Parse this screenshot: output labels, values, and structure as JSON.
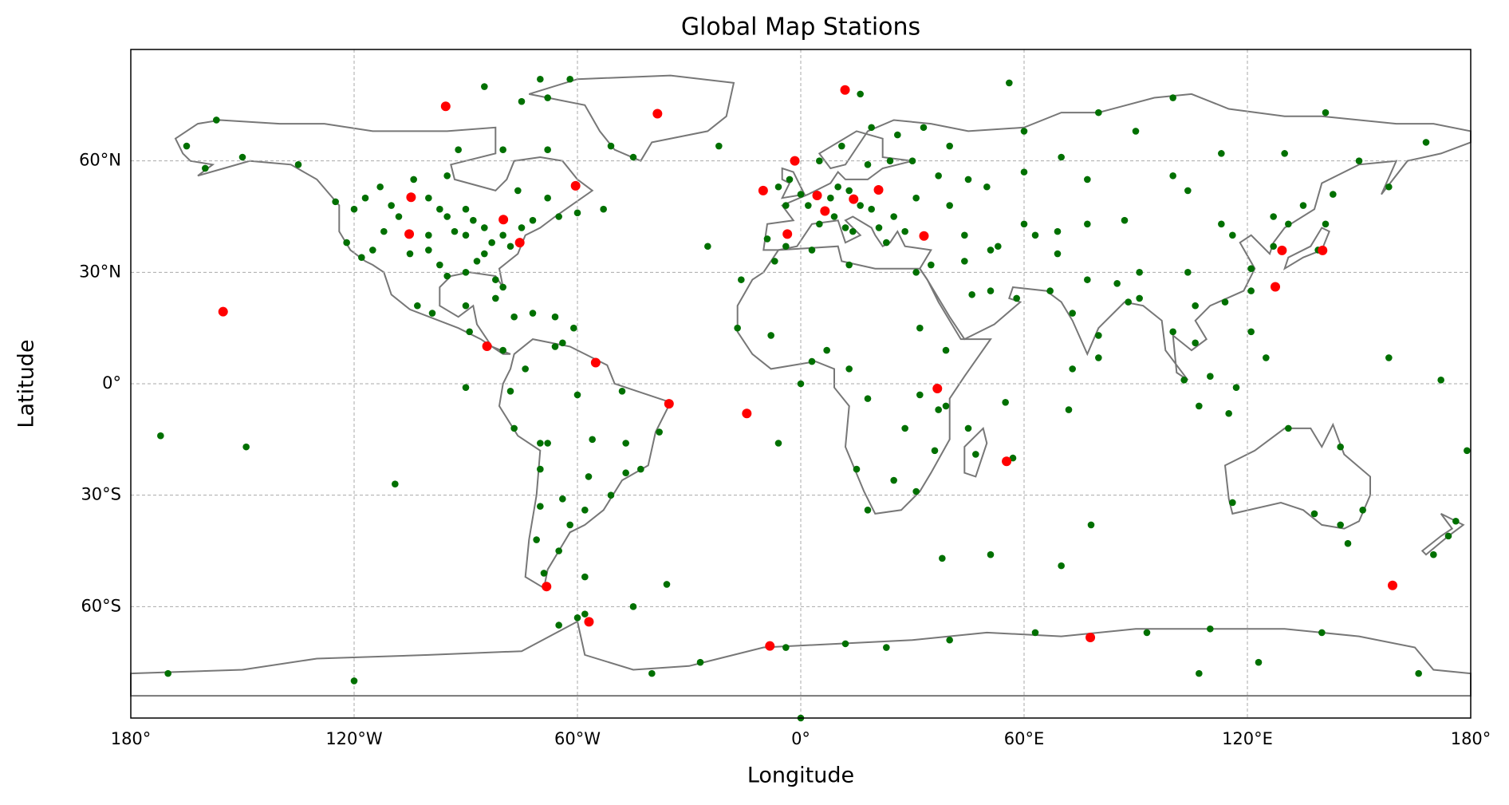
{
  "chart_data": {
    "type": "scatter",
    "title": "Global Map Stations",
    "x_label": "Longitude",
    "y_label": "Latitude",
    "xlim": [
      -180,
      180
    ],
    "ylim": [
      -90,
      90
    ],
    "xticks": [
      {
        "value": -180,
        "label": "180°"
      },
      {
        "value": -120,
        "label": "120°W"
      },
      {
        "value": -60,
        "label": "60°W"
      },
      {
        "value": 0,
        "label": "0°"
      },
      {
        "value": 60,
        "label": "60°E"
      },
      {
        "value": 120,
        "label": "120°E"
      },
      {
        "value": 180,
        "label": "180°"
      }
    ],
    "yticks": [
      {
        "value": -60,
        "label": "60°S"
      },
      {
        "value": -30,
        "label": "30°S"
      },
      {
        "value": 0,
        "label": "0°"
      },
      {
        "value": 30,
        "label": "30°N"
      },
      {
        "value": 60,
        "label": "60°N"
      }
    ],
    "grid": true,
    "series": [
      {
        "color": "#007000",
        "x": [
          -100,
          -110,
          -95,
          -90,
          -85,
          -80,
          -75,
          -120,
          -122,
          -118,
          -105,
          -97,
          -90,
          -82,
          -80,
          -88,
          -93,
          -100,
          -112,
          -115,
          -108,
          -97,
          -85,
          -78,
          -72,
          -65,
          -60,
          -53,
          -68,
          -76,
          -113,
          -125,
          -135,
          -150,
          -165,
          -157,
          -100,
          -95,
          -87,
          -83,
          -90,
          -117,
          -104,
          -95,
          -80,
          -68,
          -92,
          -70,
          -62,
          -85,
          -75,
          -45,
          -51,
          -68,
          -22,
          -99,
          -90,
          -103,
          -89,
          -80,
          -77,
          -66,
          -72,
          -82,
          -61,
          -64,
          -74,
          -66,
          -78,
          -77,
          -70,
          -68,
          -60,
          -48,
          -38,
          -47,
          -43,
          -47,
          -51,
          -58,
          -64,
          -70,
          -71,
          -65,
          -69,
          -58,
          -62,
          -56,
          -57,
          -70,
          -36,
          0,
          2,
          -3,
          -6,
          -9,
          -4,
          5,
          9,
          12,
          14,
          10,
          13,
          18,
          24,
          30,
          37,
          25,
          21,
          23,
          28,
          19,
          16,
          8,
          5,
          11,
          19,
          26,
          33,
          44,
          50,
          60,
          45,
          40,
          31,
          16,
          -4,
          -16,
          -25,
          -17,
          -8,
          3,
          7,
          13,
          18,
          28,
          36,
          31,
          18,
          25,
          15,
          32,
          37,
          39,
          45,
          47,
          57,
          55,
          39,
          32,
          31,
          13,
          -7,
          3,
          -6,
          0,
          35,
          46,
          51,
          58,
          69,
          67,
          73,
          77,
          80,
          88,
          85,
          91,
          80,
          73,
          72,
          100,
          106,
          106,
          103,
          107,
          115,
          117,
          110,
          121,
          125,
          121,
          114,
          116,
          121,
          104,
          91,
          87,
          77,
          69,
          63,
          53,
          51,
          44,
          100,
          104,
          113,
          127,
          135,
          131,
          127,
          139,
          141,
          143,
          158,
          168,
          150,
          130,
          113,
          90,
          80,
          60,
          70,
          40,
          56,
          141,
          100,
          60,
          77,
          116,
          131,
          145,
          151,
          145,
          147,
          138,
          174,
          176,
          170,
          179,
          158,
          172,
          -172,
          -149,
          -109,
          -90,
          -160,
          -60,
          -58,
          -65,
          -45,
          -40,
          -27,
          -4,
          12,
          23,
          40,
          63,
          93,
          110,
          123,
          140,
          166,
          -170,
          -120,
          0,
          107,
          70,
          78,
          51,
          38
        ],
        "y": [
          50,
          48,
          45,
          40,
          42,
          40,
          42,
          47,
          38,
          34,
          35,
          32,
          30,
          28,
          26,
          44,
          41,
          40,
          41,
          36,
          45,
          47,
          35,
          37,
          44,
          45,
          46,
          47,
          50,
          52,
          53,
          49,
          59,
          61,
          64,
          71,
          36,
          29,
          33,
          38,
          47,
          50,
          55,
          56,
          63,
          63,
          63,
          82,
          82,
          80,
          76,
          61,
          64,
          77,
          64,
          19,
          21,
          21,
          14,
          9,
          18,
          18,
          19,
          23,
          15,
          11,
          4,
          10,
          -2,
          -12,
          -16,
          -16,
          -3,
          -2,
          -13,
          -16,
          -23,
          -24,
          -30,
          -34,
          -31,
          -33,
          -42,
          -45,
          -51,
          -52,
          -38,
          -15,
          -25,
          -23,
          -54,
          51,
          48,
          55,
          53,
          39,
          37,
          43,
          45,
          42,
          41,
          53,
          52,
          59,
          60,
          60,
          56,
          45,
          42,
          38,
          41,
          47,
          48,
          50,
          60,
          64,
          69,
          67,
          69,
          40,
          53,
          57,
          55,
          48,
          50,
          78,
          48,
          28,
          37,
          15,
          13,
          6,
          9,
          4,
          -4,
          -12,
          -18,
          -29,
          -34,
          -26,
          -23,
          -3,
          -7,
          -6,
          -12,
          -19,
          -20,
          -5,
          9,
          15,
          30,
          32,
          33,
          36,
          -16,
          0,
          32,
          24,
          25,
          23,
          35,
          25,
          19,
          28,
          13,
          22,
          27,
          23,
          7,
          4,
          -7,
          14,
          21,
          11,
          1,
          -6,
          -8,
          -1,
          2,
          14,
          7,
          25,
          22,
          40,
          31,
          30,
          30,
          44,
          43,
          41,
          40,
          37,
          36,
          33,
          56,
          52,
          43,
          45,
          48,
          43,
          37,
          36,
          43,
          51,
          53,
          65,
          60,
          62,
          62,
          68,
          73,
          68,
          61,
          64,
          81,
          73,
          77,
          43,
          55,
          -32,
          -12,
          -17,
          -34,
          -38,
          -43,
          -35,
          -41,
          -37,
          -46,
          -18,
          7,
          1,
          -14,
          -17,
          -27,
          -1,
          58,
          -63,
          -62,
          -65,
          -60,
          -78,
          -75,
          -71,
          -70,
          -71,
          -69,
          -67,
          -67,
          -66,
          -75,
          -67,
          -78,
          -78,
          -80,
          -90,
          -78,
          -49,
          -38,
          -46,
          -47
        ]
      },
      {
        "color": "#ff0000",
        "x": [
          -95.4,
          11.9,
          -38.5,
          -1.6,
          -104.7,
          -60.5,
          -79.9,
          -105.2,
          -75.5,
          -10.1,
          4.4,
          6.5,
          14.2,
          20.9,
          -3.6,
          33.1,
          -155.2,
          -84.3,
          -55.1,
          -35.4,
          -14.5,
          36.7,
          55.3,
          129.3,
          140.2,
          127.5,
          -68.3,
          -56.9,
          -8.3,
          77.8,
          159
        ],
        "y": [
          74.7,
          79.1,
          72.7,
          60,
          50.2,
          53.3,
          44.2,
          40.3,
          38,
          52,
          50.7,
          46.5,
          49.7,
          52.2,
          40.3,
          39.8,
          19.4,
          10.1,
          5.7,
          -5.4,
          -8,
          -1.3,
          -20.9,
          35.9,
          35.9,
          26.1,
          -54.6,
          -64.1,
          -70.6,
          -68.3,
          -54.3
        ]
      }
    ]
  }
}
